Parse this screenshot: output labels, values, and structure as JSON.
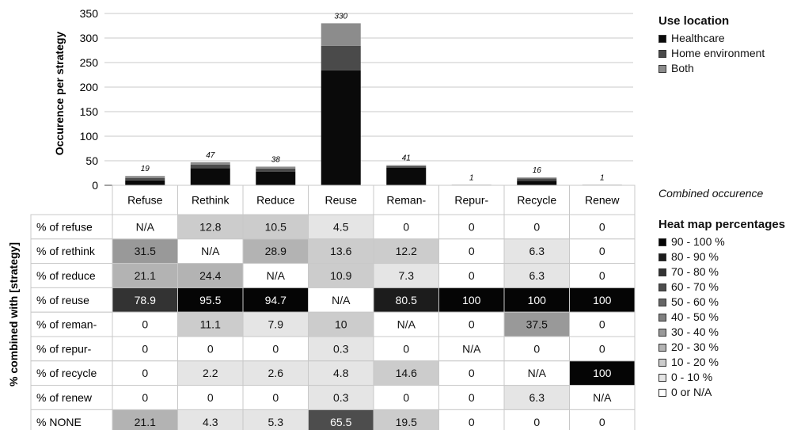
{
  "chart_data": [
    {
      "type": "bar",
      "stacked": true,
      "categories": [
        "Refuse",
        "Rethink",
        "Reduce",
        "Reuse",
        "Reman-",
        "Repur-",
        "Recycle",
        "Renew"
      ],
      "series": [
        {
          "name": "Healthcare",
          "color": "#0a0a0a",
          "values": [
            10,
            35,
            28,
            234,
            36,
            1,
            9,
            1
          ]
        },
        {
          "name": "Home environment",
          "color": "#4a4a4a",
          "values": [
            5,
            7,
            6,
            50,
            3,
            0,
            5,
            0
          ]
        },
        {
          "name": "Both",
          "color": "#8c8c8c",
          "values": [
            4,
            5,
            4,
            46,
            2,
            0,
            2,
            0
          ]
        }
      ],
      "totals": [
        "19",
        "47",
        "38",
        "330",
        "41",
        "1",
        "16",
        "1"
      ],
      "ylabel": "Occurence per strategy",
      "ylim": [
        0,
        350
      ],
      "yticks": [
        "0",
        "50",
        "100",
        "150",
        "200",
        "250",
        "300",
        "350"
      ],
      "grid": true,
      "legend": {
        "title": "Use location",
        "position": "right"
      },
      "totals_label": "Combined occurence"
    },
    {
      "type": "heatmap",
      "columns": [
        "Refuse",
        "Rethink",
        "Reduce",
        "Reuse",
        "Reman-",
        "Repur-",
        "Recycle",
        "Renew"
      ],
      "ylabel": "% combined with [strategy]",
      "rows": [
        {
          "label": "% of refuse",
          "cells": [
            "N/A",
            "12.8",
            "10.5",
            "4.5",
            "0",
            "0",
            "0",
            "0"
          ]
        },
        {
          "label": "% of rethink",
          "cells": [
            "31.5",
            "N/A",
            "28.9",
            "13.6",
            "12.2",
            "0",
            "6.3",
            "0"
          ]
        },
        {
          "label": "% of reduce",
          "cells": [
            "21.1",
            "24.4",
            "N/A",
            "10.9",
            "7.3",
            "0",
            "6.3",
            "0"
          ]
        },
        {
          "label": "% of reuse",
          "cells": [
            "78.9",
            "95.5",
            "94.7",
            "N/A",
            "80.5",
            "100",
            "100",
            "100"
          ]
        },
        {
          "label": "% of reman-",
          "cells": [
            "0",
            "11.1",
            "7.9",
            "10",
            "N/A",
            "0",
            "37.5",
            "0"
          ]
        },
        {
          "label": "% of repur-",
          "cells": [
            "0",
            "0",
            "0",
            "0.3",
            "0",
            "N/A",
            "0",
            "0"
          ]
        },
        {
          "label": "% of recycle",
          "cells": [
            "0",
            "2.2",
            "2.6",
            "4.8",
            "14.6",
            "0",
            "N/A",
            "100"
          ]
        },
        {
          "label": "% of renew",
          "cells": [
            "0",
            "0",
            "0",
            "0.3",
            "0",
            "0",
            "6.3",
            "N/A"
          ]
        },
        {
          "label": "% NONE",
          "cells": [
            "21.1",
            "4.3",
            "5.3",
            "65.5",
            "19.5",
            "0",
            "0",
            "0"
          ]
        }
      ],
      "legend": {
        "title": "Heat map percentages",
        "position": "right",
        "bins": [
          {
            "label": "90 - 100 %",
            "color": "#050505"
          },
          {
            "label": "80 - 90 %",
            "color": "#1c1c1c"
          },
          {
            "label": "70 - 80 %",
            "color": "#333333"
          },
          {
            "label": "60 - 70 %",
            "color": "#4d4d4d"
          },
          {
            "label": "50 - 60 %",
            "color": "#666666"
          },
          {
            "label": "40 - 50 %",
            "color": "#808080"
          },
          {
            "label": "30 - 40 %",
            "color": "#999999"
          },
          {
            "label": "20 - 30 %",
            "color": "#b3b3b3"
          },
          {
            "label": "10 - 20 %",
            "color": "#cccccc"
          },
          {
            "label": "0 - 10 %",
            "color": "#e5e5e5"
          },
          {
            "label": "0 or N/A",
            "color": "#ffffff"
          }
        ]
      }
    }
  ]
}
